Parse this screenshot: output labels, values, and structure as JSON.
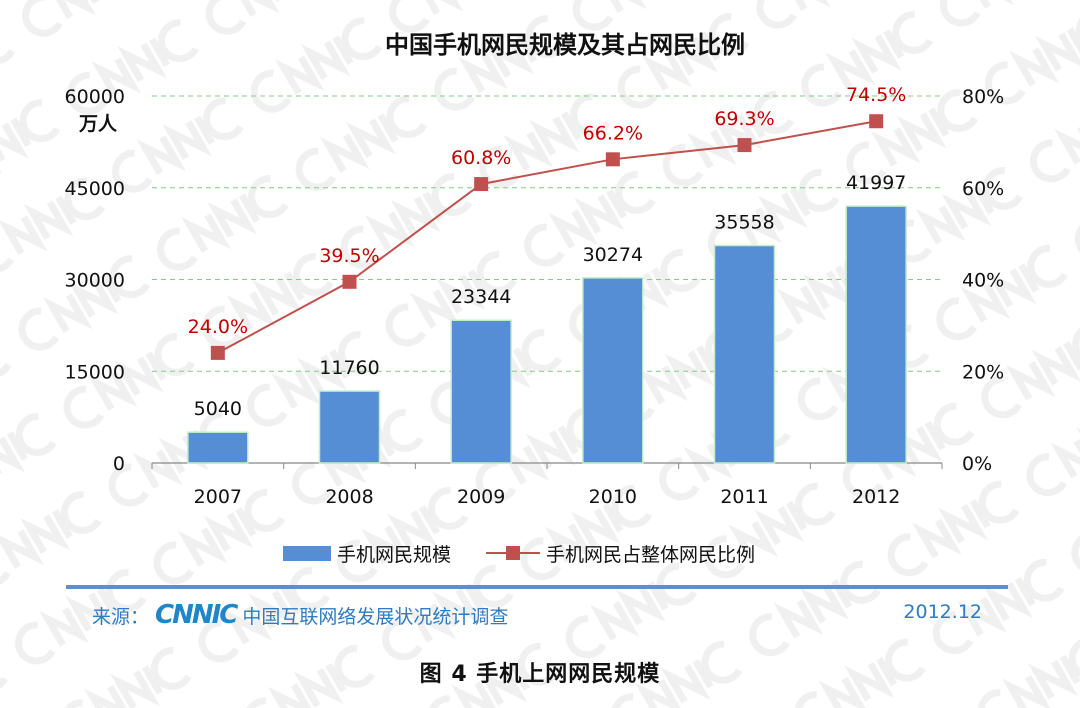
{
  "chart_data": {
    "type": "bar+line",
    "title": "中国手机网民规模及其占网民比例",
    "categories": [
      "2007",
      "2008",
      "2009",
      "2010",
      "2011",
      "2012"
    ],
    "series": [
      {
        "name": "手机网民规模",
        "type": "bar",
        "axis": "left",
        "values": [
          5040,
          11760,
          23344,
          30274,
          35558,
          41997
        ],
        "labels": [
          "5040",
          "11760",
          "23344",
          "30274",
          "35558",
          "41997"
        ],
        "color": "#558ed5"
      },
      {
        "name": "手机网民占整体网民比例",
        "type": "line",
        "axis": "right",
        "values": [
          24.0,
          39.5,
          60.8,
          66.2,
          69.3,
          74.5
        ],
        "labels": [
          "24.0%",
          "39.5%",
          "60.8%",
          "66.2%",
          "69.3%",
          "74.5%"
        ],
        "color": "#c0504d"
      }
    ],
    "y_left": {
      "unit": "万人",
      "ylim": [
        0,
        60000
      ],
      "ticks": [
        "0",
        "15000",
        "30000",
        "45000",
        "60000"
      ]
    },
    "y_right": {
      "ylim": [
        0,
        80
      ],
      "ticks": [
        "0%",
        "20%",
        "40%",
        "60%",
        "80%"
      ]
    },
    "grid": "horizontal dashed green",
    "legend": "bottom"
  },
  "footer": {
    "source_label": "来源：",
    "logo": "CNNIC",
    "source_text": "中国互联网络发展状况统计调查",
    "date": "2012.12"
  },
  "caption": "图  4  手机上网网民规模"
}
